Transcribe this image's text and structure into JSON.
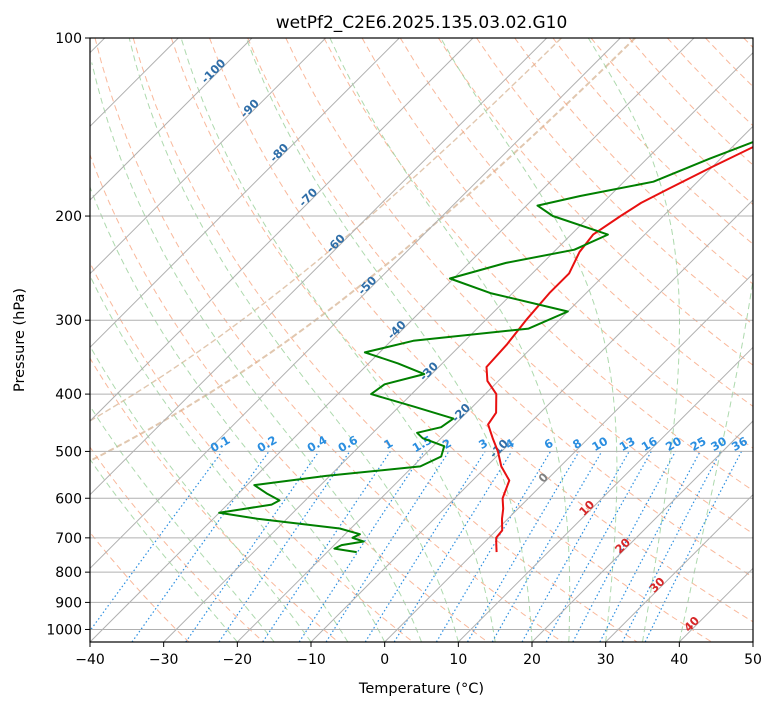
{
  "chart_data": {
    "type": "line",
    "subtype": "skew-T log-P diagram",
    "title": "wetPf2_C2E6.2025.135.03.02.G10",
    "xlabel": "Temperature (°C)",
    "ylabel": "Pressure (hPa)",
    "xlim": [
      -40,
      50
    ],
    "ylim": [
      1050,
      100
    ],
    "y_scale": "log",
    "grid": true,
    "x_ticks": [
      "−40",
      "−30",
      "−20",
      "−10",
      "0",
      "10",
      "20",
      "30",
      "40",
      "50"
    ],
    "y_ticks": [
      "100",
      "200",
      "300",
      "400",
      "500",
      "600",
      "700",
      "800",
      "900",
      "1000"
    ],
    "series": [
      {
        "color": "#e81010",
        "points": [
          {
            "p": 100,
            "t": -6.0
          },
          {
            "p": 108,
            "t": -7.0
          },
          {
            "p": 116,
            "t": -8.8
          },
          {
            "p": 125,
            "t": -10.5
          },
          {
            "p": 135,
            "t": -13.0
          },
          {
            "p": 150,
            "t": -16.5
          },
          {
            "p": 165,
            "t": -20.0
          },
          {
            "p": 180,
            "t": -23.0
          },
          {
            "p": 190,
            "t": -24.8
          },
          {
            "p": 200,
            "t": -25.8
          },
          {
            "p": 215,
            "t": -27.0
          },
          {
            "p": 230,
            "t": -26.5
          },
          {
            "p": 250,
            "t": -25.0
          },
          {
            "p": 270,
            "t": -25.0
          },
          {
            "p": 300,
            "t": -24.5
          },
          {
            "p": 330,
            "t": -23.8
          },
          {
            "p": 360,
            "t": -23.5
          },
          {
            "p": 380,
            "t": -21.5
          },
          {
            "p": 400,
            "t": -18.5
          },
          {
            "p": 430,
            "t": -16.0
          },
          {
            "p": 450,
            "t": -15.5
          },
          {
            "p": 475,
            "t": -13.0
          },
          {
            "p": 500,
            "t": -10.5
          },
          {
            "p": 530,
            "t": -8.0
          },
          {
            "p": 560,
            "t": -5.0
          },
          {
            "p": 600,
            "t": -3.5
          },
          {
            "p": 625,
            "t": -2.0
          },
          {
            "p": 650,
            "t": -0.8
          },
          {
            "p": 680,
            "t": 0.8
          },
          {
            "p": 700,
            "t": 1.0
          },
          {
            "p": 720,
            "t": 2.0
          },
          {
            "p": 740,
            "t": 3.0
          }
        ]
      },
      {
        "color": "#008000",
        "points": [
          {
            "p": 100,
            "t": -6.0
          },
          {
            "p": 104,
            "t": -7.0
          },
          {
            "p": 110,
            "t": -7.5
          },
          {
            "p": 115,
            "t": -7.0
          },
          {
            "p": 120,
            "t": -8.5
          },
          {
            "p": 127,
            "t": -8.0
          },
          {
            "p": 132,
            "t": -9.0
          },
          {
            "p": 145,
            "t": -16.0
          },
          {
            "p": 160,
            "t": -21.5
          },
          {
            "p": 175,
            "t": -26.0
          },
          {
            "p": 185,
            "t": -34.0
          },
          {
            "p": 192,
            "t": -38.5
          },
          {
            "p": 200,
            "t": -35.0
          },
          {
            "p": 215,
            "t": -25.0
          },
          {
            "p": 228,
            "t": -27.5
          },
          {
            "p": 240,
            "t": -35.0
          },
          {
            "p": 255,
            "t": -40.5
          },
          {
            "p": 270,
            "t": -33.0
          },
          {
            "p": 290,
            "t": -20.0
          },
          {
            "p": 310,
            "t": -23.0
          },
          {
            "p": 325,
            "t": -37.0
          },
          {
            "p": 340,
            "t": -42.0
          },
          {
            "p": 355,
            "t": -36.0
          },
          {
            "p": 370,
            "t": -31.0
          },
          {
            "p": 385,
            "t": -35.0
          },
          {
            "p": 400,
            "t": -35.5
          },
          {
            "p": 420,
            "t": -28.0
          },
          {
            "p": 440,
            "t": -21.0
          },
          {
            "p": 455,
            "t": -21.5
          },
          {
            "p": 465,
            "t": -24.0
          },
          {
            "p": 475,
            "t": -22.5
          },
          {
            "p": 490,
            "t": -18.5
          },
          {
            "p": 510,
            "t": -17.5
          },
          {
            "p": 530,
            "t": -19.0
          },
          {
            "p": 550,
            "t": -30.5
          },
          {
            "p": 570,
            "t": -39.0
          },
          {
            "p": 590,
            "t": -36.0
          },
          {
            "p": 605,
            "t": -33.5
          },
          {
            "p": 615,
            "t": -34.0
          },
          {
            "p": 635,
            "t": -40.0
          },
          {
            "p": 650,
            "t": -34.0
          },
          {
            "p": 675,
            "t": -21.5
          },
          {
            "p": 690,
            "t": -18.0
          },
          {
            "p": 700,
            "t": -18.5
          },
          {
            "p": 710,
            "t": -16.5
          },
          {
            "p": 720,
            "t": -19.0
          },
          {
            "p": 730,
            "t": -19.5
          },
          {
            "p": 740,
            "t": -16.0
          }
        ]
      }
    ],
    "isotherm_labels": [
      {
        "text": "-100",
        "t": -100,
        "p": 115
      },
      {
        "text": "-90",
        "t": -90,
        "p": 133
      },
      {
        "text": "-80",
        "t": -80,
        "p": 158
      },
      {
        "text": "-70",
        "t": -70,
        "p": 188
      },
      {
        "text": "-60",
        "t": -60,
        "p": 225
      },
      {
        "text": "-50",
        "t": -50,
        "p": 265
      },
      {
        "text": "-40",
        "t": -40,
        "p": 315
      },
      {
        "text": "-30",
        "t": -30,
        "p": 370
      },
      {
        "text": "-20",
        "t": -20,
        "p": 435
      },
      {
        "text": "-10",
        "t": -10,
        "p": 500
      },
      {
        "text": "0",
        "t": 0,
        "p": 560
      },
      {
        "text": "10",
        "t": 10,
        "p": 630
      },
      {
        "text": "20",
        "t": 20,
        "p": 730
      },
      {
        "text": "30",
        "t": 30,
        "p": 850
      },
      {
        "text": "40",
        "t": 40,
        "p": 990
      }
    ],
    "mixing_ratio_labels": [
      "0.1",
      "0.2",
      "0.4",
      "0.6",
      "1",
      "1.5",
      "2",
      "3",
      "4",
      "6",
      "8",
      "10",
      "13",
      "16",
      "20",
      "25",
      "30",
      "36"
    ],
    "colors": {
      "temperature": "#e81010",
      "dewpoint": "#008000",
      "grid": "#b0b0b0",
      "isotherm_cold": "#2f6ea8",
      "isotherm_zero": "#808080",
      "isotherm_warm": "#d62728",
      "mixing_ratio": "#2a8ee0",
      "dry_adiabat": "#f7a07a",
      "moist_adiabat": "#98cf98",
      "background_arc": "#d9b99b"
    }
  }
}
